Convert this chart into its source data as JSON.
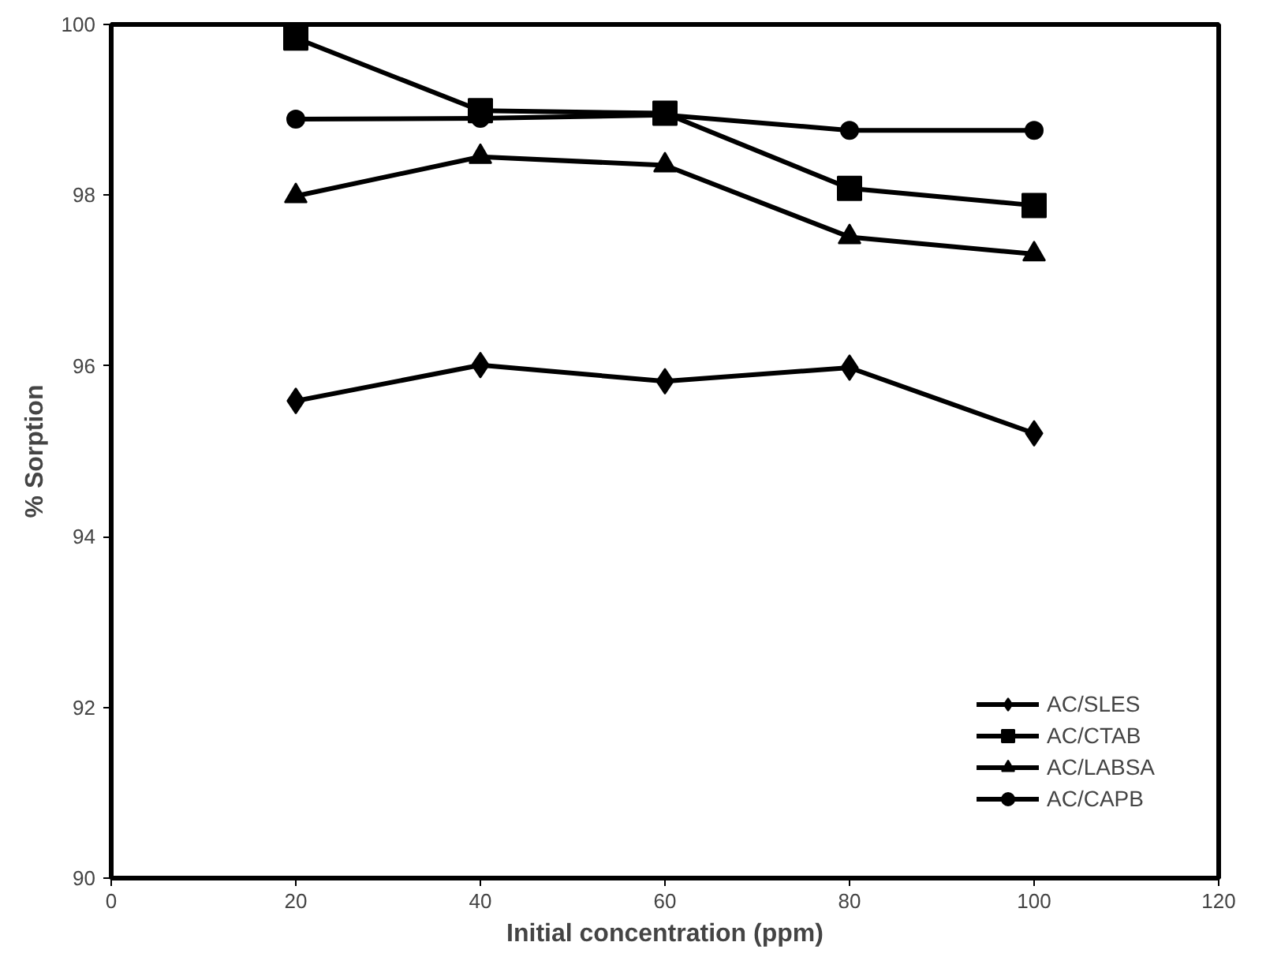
{
  "chart_data": {
    "type": "line",
    "xlabel": "Initial concentration (ppm)",
    "ylabel": "% Sorption",
    "x": [
      20,
      40,
      60,
      80,
      100
    ],
    "series": [
      {
        "name": "AC/SLES",
        "color": "#000000",
        "marker": "diamond",
        "values": [
          95.59,
          96.01,
          95.82,
          95.98,
          95.21
        ]
      },
      {
        "name": "AC/CTAB",
        "color": "#000000",
        "marker": "square",
        "values": [
          99.84,
          98.99,
          98.96,
          98.08,
          97.88
        ]
      },
      {
        "name": "AC/LABSA",
        "color": "#000000",
        "marker": "triangle",
        "values": [
          97.99,
          98.45,
          98.35,
          97.51,
          97.31
        ]
      },
      {
        "name": "AC/CAPB",
        "color": "#000000",
        "marker": "circle",
        "values": [
          98.89,
          98.9,
          98.94,
          98.76,
          98.76
        ]
      }
    ],
    "xlim": [
      0,
      120
    ],
    "xticks": [
      0,
      20,
      40,
      60,
      80,
      100,
      120
    ],
    "ylim": [
      90,
      100
    ],
    "yticks": [
      90,
      92,
      94,
      96,
      98,
      100
    ],
    "grid": false,
    "legend": "bottom right",
    "line_style": "solid"
  }
}
